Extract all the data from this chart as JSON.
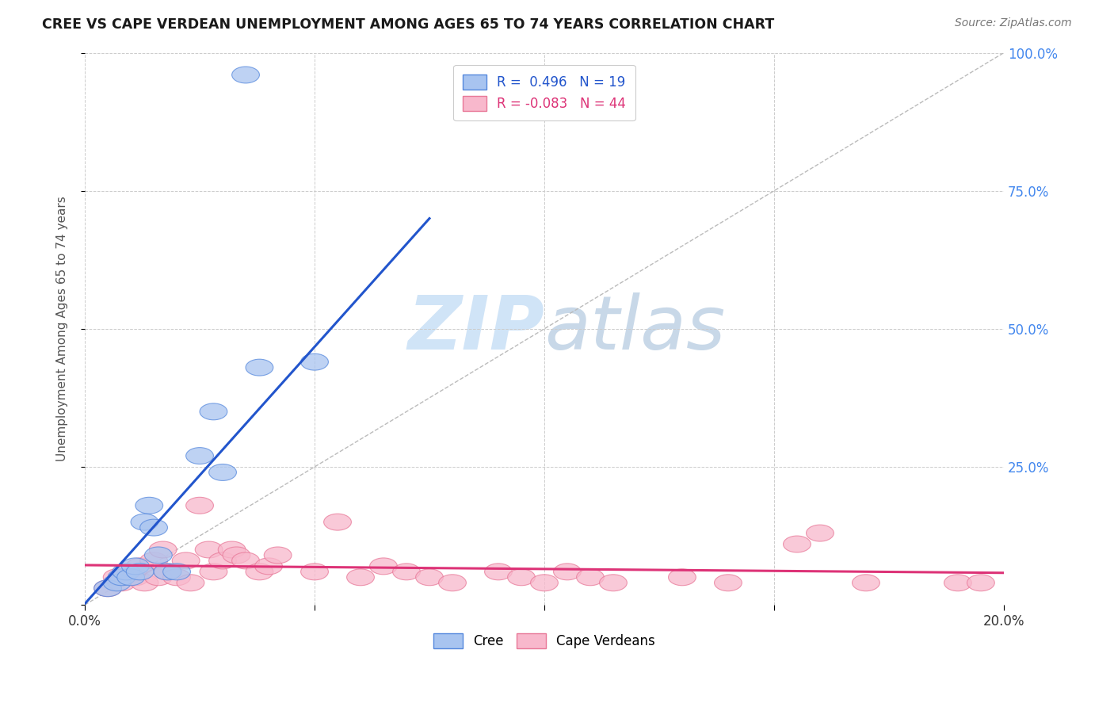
{
  "title": "CREE VS CAPE VERDEAN UNEMPLOYMENT AMONG AGES 65 TO 74 YEARS CORRELATION CHART",
  "source": "Source: ZipAtlas.com",
  "ylabel": "Unemployment Among Ages 65 to 74 years",
  "xlim": [
    0.0,
    0.2
  ],
  "ylim": [
    0.0,
    1.0
  ],
  "cree_R": 0.496,
  "cree_N": 19,
  "cape_R": -0.083,
  "cape_N": 44,
  "cree_color_face": "#a8c4f0",
  "cree_color_edge": "#5588dd",
  "cape_color_face": "#f8b8cc",
  "cape_color_edge": "#e87898",
  "cree_line_color": "#2255cc",
  "cape_line_color": "#dd3377",
  "diag_color": "#bbbbbb",
  "grid_color": "#cccccc",
  "background_color": "#ffffff",
  "ytick_color": "#4488ee",
  "watermark_color": "#d0e4f7",
  "cree_x": [
    0.005,
    0.007,
    0.008,
    0.009,
    0.01,
    0.011,
    0.012,
    0.013,
    0.014,
    0.015,
    0.016,
    0.018,
    0.02,
    0.025,
    0.03,
    0.035,
    0.038,
    0.05,
    0.028
  ],
  "cree_y": [
    0.03,
    0.04,
    0.05,
    0.06,
    0.05,
    0.07,
    0.06,
    0.15,
    0.18,
    0.14,
    0.09,
    0.06,
    0.06,
    0.27,
    0.24,
    0.96,
    0.43,
    0.44,
    0.35
  ],
  "cape_x": [
    0.005,
    0.007,
    0.008,
    0.01,
    0.011,
    0.012,
    0.013,
    0.015,
    0.016,
    0.017,
    0.018,
    0.02,
    0.022,
    0.023,
    0.025,
    0.027,
    0.028,
    0.03,
    0.032,
    0.033,
    0.035,
    0.038,
    0.04,
    0.042,
    0.05,
    0.055,
    0.06,
    0.065,
    0.07,
    0.075,
    0.08,
    0.09,
    0.095,
    0.1,
    0.105,
    0.11,
    0.115,
    0.13,
    0.14,
    0.155,
    0.16,
    0.17,
    0.19,
    0.195
  ],
  "cape_y": [
    0.03,
    0.05,
    0.04,
    0.06,
    0.05,
    0.07,
    0.04,
    0.08,
    0.05,
    0.1,
    0.06,
    0.05,
    0.08,
    0.04,
    0.18,
    0.1,
    0.06,
    0.08,
    0.1,
    0.09,
    0.08,
    0.06,
    0.07,
    0.09,
    0.06,
    0.15,
    0.05,
    0.07,
    0.06,
    0.05,
    0.04,
    0.06,
    0.05,
    0.04,
    0.06,
    0.05,
    0.04,
    0.05,
    0.04,
    0.11,
    0.13,
    0.04,
    0.04,
    0.04
  ],
  "cree_trend_x": [
    0.0,
    0.075
  ],
  "cree_trend_y": [
    0.002,
    0.7
  ],
  "cape_trend_x": [
    0.0,
    0.2
  ],
  "cape_trend_y": [
    0.072,
    0.058
  ]
}
